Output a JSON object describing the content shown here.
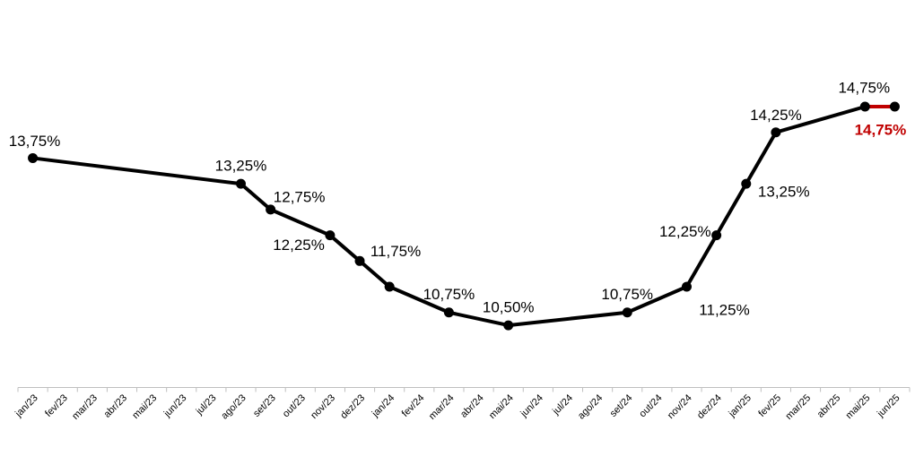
{
  "chart_data": {
    "type": "line",
    "categories": [
      "jan/23",
      "fev/23",
      "mar/23",
      "abr/23",
      "mai/23",
      "jun/23",
      "jul/23",
      "ago/23",
      "set/23",
      "out/23",
      "nov/23",
      "dez/23",
      "jan/24",
      "fev/24",
      "mar/24",
      "abr/24",
      "mai/24",
      "jun/24",
      "jul/24",
      "ago/24",
      "set/24",
      "out/24",
      "nov/24",
      "dez/24",
      "jan/25",
      "fev/25",
      "mar/25",
      "abr/25",
      "mai/25",
      "jun/25"
    ],
    "points": [
      {
        "x": "jan/23",
        "y": 13.75,
        "label": "13,75%"
      },
      {
        "x": "ago/23",
        "y": 13.25,
        "label": "13,25%"
      },
      {
        "x": "set/23",
        "y": 12.75,
        "label": "12,75%"
      },
      {
        "x": "nov/23",
        "y": 12.25,
        "label": "12,25%"
      },
      {
        "x": "dez/23",
        "y": 11.75,
        "label": "11,75%"
      },
      {
        "x": "jan/24",
        "y": 11.25
      },
      {
        "x": "mar/24",
        "y": 10.75,
        "label": "10,75%"
      },
      {
        "x": "mai/24",
        "y": 10.5,
        "label": "10,50%"
      },
      {
        "x": "set/24",
        "y": 10.75,
        "label": "10,75%"
      },
      {
        "x": "nov/24",
        "y": 11.25,
        "label": "11,25%"
      },
      {
        "x": "dez/24",
        "y": 12.25,
        "label": "12,25%"
      },
      {
        "x": "jan/25",
        "y": 13.25,
        "label": "13,25%"
      },
      {
        "x": "fev/25",
        "y": 14.25,
        "label": "14,25%"
      },
      {
        "x": "mai/25",
        "y": 14.75,
        "label": "14,75%"
      },
      {
        "x": "jun/25",
        "y": 14.75,
        "label": "14,75%",
        "highlight": true
      }
    ],
    "ylim": [
      9.3,
      16.3
    ],
    "grid": false,
    "line_color": "#000000",
    "highlight_color": "#c00000"
  }
}
